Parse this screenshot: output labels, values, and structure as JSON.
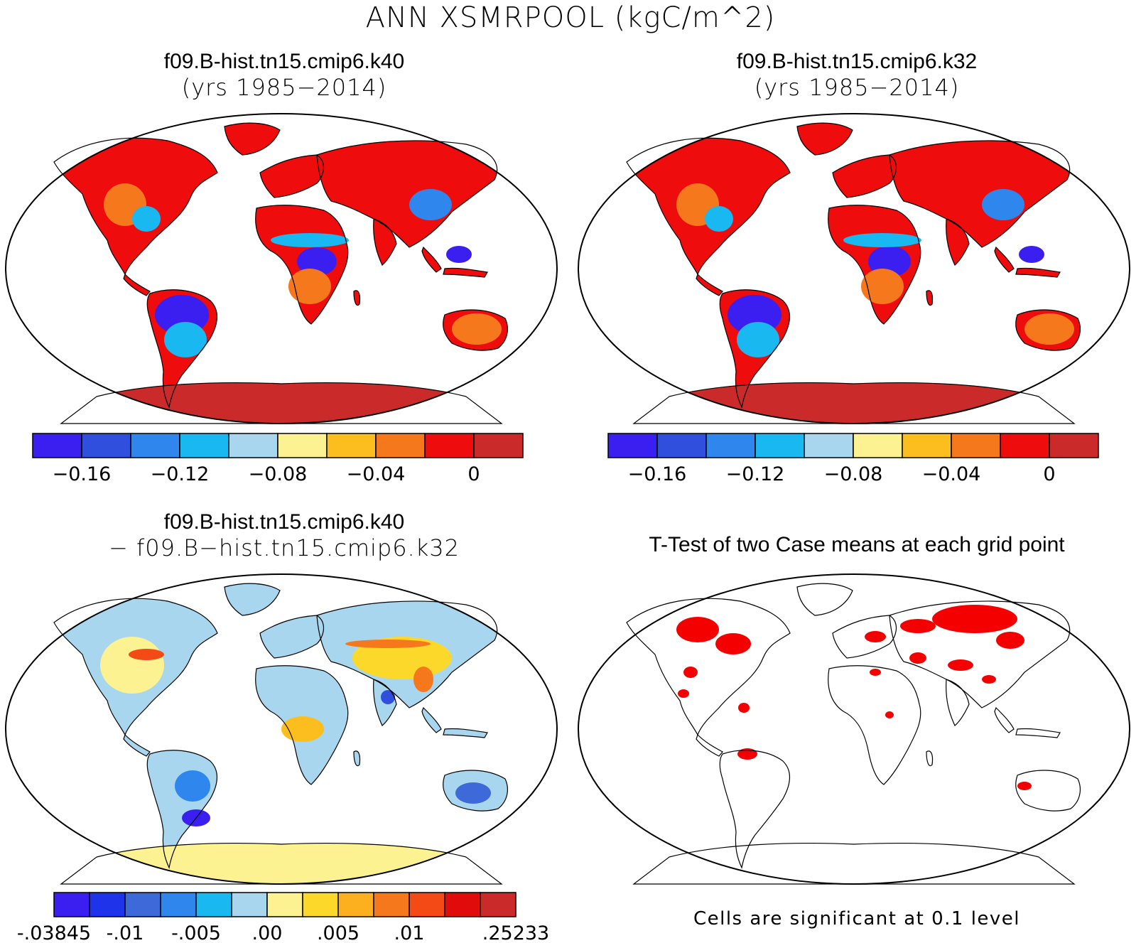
{
  "title": "ANN XSMRPOOL (kgC/m^2)",
  "panels": {
    "top_left": {
      "title": "f09.B-hist.tn15.cmip6.k40",
      "subtitle": "(yrs 1985−2014)"
    },
    "top_right": {
      "title": "f09.B-hist.tn15.cmip6.k32",
      "subtitle": "(yrs 1985−2014)"
    },
    "bottom_left": {
      "title": "f09.B-hist.tn15.cmip6.k40",
      "subtitle": "− f09.B−hist.tn15.cmip6.k32"
    },
    "bottom_right": {
      "title": "T-Test of two Case means at each grid point",
      "note": "Cells are significant at 0.1 level"
    }
  },
  "colorbar_abs": {
    "colors": [
      "#3a1ff0",
      "#2f4fdc",
      "#2f86ec",
      "#19b8f0",
      "#a8d6ee",
      "#fcf292",
      "#fcbe1e",
      "#f6781c",
      "#ef0c0c",
      "#cb2a2a"
    ],
    "labels": [
      "−0.16",
      "−0.12",
      "−0.08",
      "−0.04",
      "0"
    ],
    "values": [
      -0.16,
      -0.12,
      -0.08,
      -0.04,
      0
    ]
  },
  "colorbar_diff": {
    "colors": [
      "#3a1ff0",
      "#1f34ea",
      "#3d6ad8",
      "#2f86ec",
      "#19b8f0",
      "#a8d6ee",
      "#fcf292",
      "#fcd82a",
      "#fcb020",
      "#f6781c",
      "#f44a16",
      "#e00c0c",
      "#cb2a2a"
    ],
    "labels": [
      "-.03845",
      "-.01",
      "-.005",
      ".00",
      ".005",
      ".01",
      ".25233"
    ]
  },
  "colors": {
    "significant": "#f40000",
    "map_outline": "#000000"
  }
}
